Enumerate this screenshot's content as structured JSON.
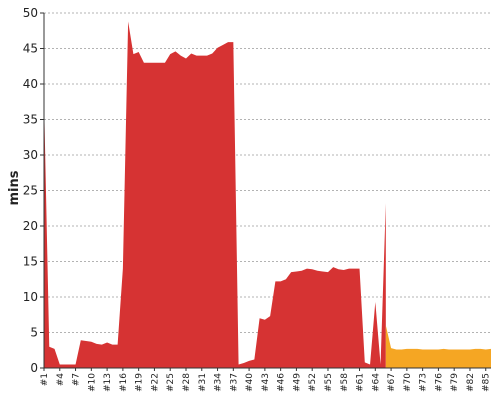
{
  "chart_data": {
    "type": "area",
    "ylabel": "mins",
    "ylim": [
      0,
      50
    ],
    "yticks": [
      0,
      5,
      10,
      15,
      20,
      25,
      30,
      35,
      40,
      45,
      50
    ],
    "grid": true,
    "colors": {
      "main": "#d63333",
      "highlight": "#f5a623"
    },
    "x_tick_labels": [
      "#1",
      "#4",
      "#7",
      "#10",
      "#13",
      "#16",
      "#19",
      "#22",
      "#25",
      "#28",
      "#31",
      "#34",
      "#37",
      "#40",
      "#43",
      "#46",
      "#49",
      "#52",
      "#55",
      "#58",
      "#61",
      "#64",
      "#67",
      "#70",
      "#73",
      "#76",
      "#79",
      "#82",
      "#85"
    ],
    "series": [
      {
        "color": "#d63333",
        "x": [
          1,
          2,
          3,
          4,
          5,
          6,
          7,
          8,
          9,
          10,
          11,
          12,
          13,
          14,
          15,
          16,
          17,
          18,
          19,
          20,
          21,
          22,
          23,
          24,
          25,
          26,
          27,
          28,
          29,
          30,
          31,
          32,
          33,
          34,
          35,
          36,
          37,
          38,
          39,
          40,
          41,
          42,
          43,
          44,
          45,
          46,
          47,
          48,
          49,
          50,
          51,
          52,
          53,
          54,
          55,
          56,
          57,
          58,
          59,
          60,
          61,
          62,
          63,
          64,
          65,
          66
        ],
        "values": [
          38,
          3,
          2.7,
          0.5,
          0.5,
          0.5,
          0.5,
          3.9,
          3.8,
          3.7,
          3.4,
          3.3,
          3.6,
          3.3,
          3.3,
          14,
          48.8,
          44.2,
          44.5,
          43,
          43,
          43,
          43,
          43,
          44.2,
          44.6,
          44,
          43.6,
          44.3,
          44,
          44,
          44,
          44.3,
          45.1,
          45.5,
          45.9,
          45.9,
          0.5,
          0.7,
          1,
          1.2,
          7,
          6.8,
          7.3,
          12.2,
          12.2,
          12.5,
          13.5,
          13.6,
          13.7,
          14,
          13.9,
          13.7,
          13.6,
          13.5,
          14.2,
          13.9,
          13.8,
          14,
          14,
          14,
          0.8,
          0.5,
          9.3,
          0.5,
          23.2
        ]
      },
      {
        "color": "#f5a623",
        "x": [
          66,
          67,
          68,
          69,
          70,
          71,
          72,
          73,
          74,
          75,
          76,
          77,
          78,
          79,
          80,
          81,
          82,
          83,
          84,
          85,
          86
        ],
        "values": [
          6,
          2.8,
          2.6,
          2.6,
          2.7,
          2.7,
          2.7,
          2.6,
          2.6,
          2.6,
          2.6,
          2.7,
          2.6,
          2.6,
          2.6,
          2.6,
          2.6,
          2.7,
          2.7,
          2.6,
          2.7
        ]
      }
    ]
  }
}
